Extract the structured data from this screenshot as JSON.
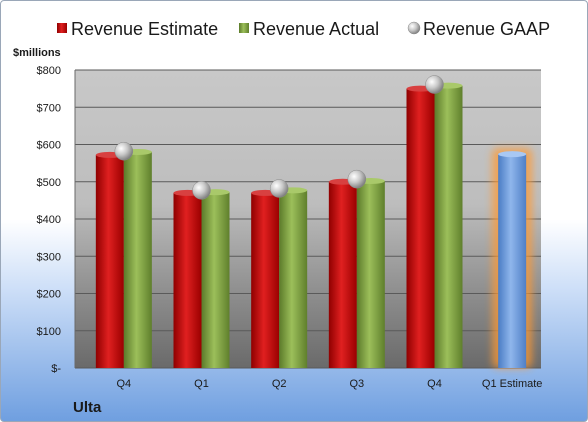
{
  "chart_data": {
    "type": "bar",
    "company": "Ulta",
    "unit_label": "$millions",
    "categories": [
      "Q4",
      "Q1",
      "Q2",
      "Q3",
      "Q4",
      "Q1 Estimate"
    ],
    "series": [
      {
        "name": "Revenue Estimate",
        "color": "#c00000",
        "values": [
          572,
          470,
          470,
          500,
          750,
          null
        ]
      },
      {
        "name": "Revenue Actual",
        "color": "#77933c",
        "values": [
          580,
          472,
          477,
          502,
          758,
          null
        ]
      },
      {
        "name": "Revenue GAAP",
        "color": "#b0b0b0",
        "values": [
          582,
          477,
          482,
          507,
          761,
          null
        ]
      },
      {
        "name": "Q1 Estimate",
        "color": "#6699dd",
        "values": [
          null,
          null,
          null,
          null,
          null,
          574
        ]
      }
    ],
    "y_ticks": [
      "$-",
      "$100",
      "$200",
      "$300",
      "$400",
      "$500",
      "$600",
      "$700",
      "$800"
    ],
    "ylim": [
      0,
      800
    ],
    "grid": true,
    "legend": "top"
  }
}
